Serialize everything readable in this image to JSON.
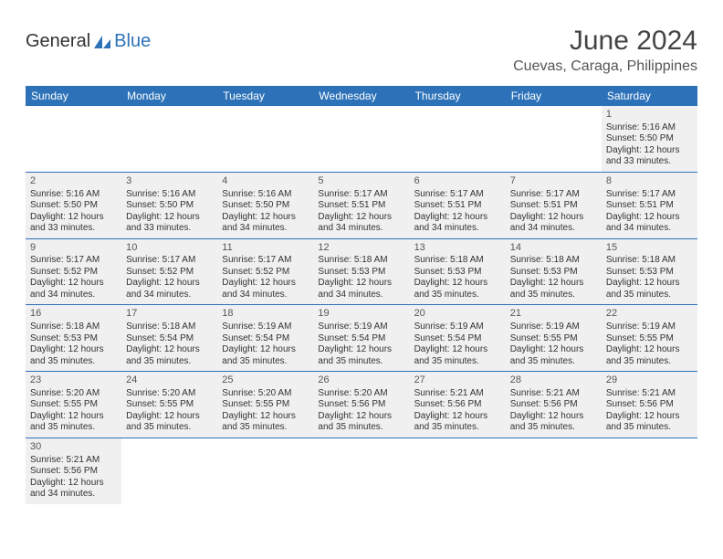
{
  "brand": {
    "part1": "General",
    "part2": "Blue"
  },
  "title": "June 2024",
  "location": "Cuevas, Caraga, Philippines",
  "colors": {
    "header_bg": "#2d72b8",
    "header_text": "#ffffff",
    "cell_bg": "#f0f0f0",
    "divider": "#2d72b8",
    "body_text": "#333333",
    "title_text": "#444444"
  },
  "day_headers": [
    "Sunday",
    "Monday",
    "Tuesday",
    "Wednesday",
    "Thursday",
    "Friday",
    "Saturday"
  ],
  "weeks": [
    [
      null,
      null,
      null,
      null,
      null,
      null,
      {
        "n": "1",
        "sunrise": "Sunrise: 5:16 AM",
        "sunset": "Sunset: 5:50 PM",
        "daylight": "Daylight: 12 hours and 33 minutes."
      }
    ],
    [
      {
        "n": "2",
        "sunrise": "Sunrise: 5:16 AM",
        "sunset": "Sunset: 5:50 PM",
        "daylight": "Daylight: 12 hours and 33 minutes."
      },
      {
        "n": "3",
        "sunrise": "Sunrise: 5:16 AM",
        "sunset": "Sunset: 5:50 PM",
        "daylight": "Daylight: 12 hours and 33 minutes."
      },
      {
        "n": "4",
        "sunrise": "Sunrise: 5:16 AM",
        "sunset": "Sunset: 5:50 PM",
        "daylight": "Daylight: 12 hours and 34 minutes."
      },
      {
        "n": "5",
        "sunrise": "Sunrise: 5:17 AM",
        "sunset": "Sunset: 5:51 PM",
        "daylight": "Daylight: 12 hours and 34 minutes."
      },
      {
        "n": "6",
        "sunrise": "Sunrise: 5:17 AM",
        "sunset": "Sunset: 5:51 PM",
        "daylight": "Daylight: 12 hours and 34 minutes."
      },
      {
        "n": "7",
        "sunrise": "Sunrise: 5:17 AM",
        "sunset": "Sunset: 5:51 PM",
        "daylight": "Daylight: 12 hours and 34 minutes."
      },
      {
        "n": "8",
        "sunrise": "Sunrise: 5:17 AM",
        "sunset": "Sunset: 5:51 PM",
        "daylight": "Daylight: 12 hours and 34 minutes."
      }
    ],
    [
      {
        "n": "9",
        "sunrise": "Sunrise: 5:17 AM",
        "sunset": "Sunset: 5:52 PM",
        "daylight": "Daylight: 12 hours and 34 minutes."
      },
      {
        "n": "10",
        "sunrise": "Sunrise: 5:17 AM",
        "sunset": "Sunset: 5:52 PM",
        "daylight": "Daylight: 12 hours and 34 minutes."
      },
      {
        "n": "11",
        "sunrise": "Sunrise: 5:17 AM",
        "sunset": "Sunset: 5:52 PM",
        "daylight": "Daylight: 12 hours and 34 minutes."
      },
      {
        "n": "12",
        "sunrise": "Sunrise: 5:18 AM",
        "sunset": "Sunset: 5:53 PM",
        "daylight": "Daylight: 12 hours and 34 minutes."
      },
      {
        "n": "13",
        "sunrise": "Sunrise: 5:18 AM",
        "sunset": "Sunset: 5:53 PM",
        "daylight": "Daylight: 12 hours and 35 minutes."
      },
      {
        "n": "14",
        "sunrise": "Sunrise: 5:18 AM",
        "sunset": "Sunset: 5:53 PM",
        "daylight": "Daylight: 12 hours and 35 minutes."
      },
      {
        "n": "15",
        "sunrise": "Sunrise: 5:18 AM",
        "sunset": "Sunset: 5:53 PM",
        "daylight": "Daylight: 12 hours and 35 minutes."
      }
    ],
    [
      {
        "n": "16",
        "sunrise": "Sunrise: 5:18 AM",
        "sunset": "Sunset: 5:53 PM",
        "daylight": "Daylight: 12 hours and 35 minutes."
      },
      {
        "n": "17",
        "sunrise": "Sunrise: 5:18 AM",
        "sunset": "Sunset: 5:54 PM",
        "daylight": "Daylight: 12 hours and 35 minutes."
      },
      {
        "n": "18",
        "sunrise": "Sunrise: 5:19 AM",
        "sunset": "Sunset: 5:54 PM",
        "daylight": "Daylight: 12 hours and 35 minutes."
      },
      {
        "n": "19",
        "sunrise": "Sunrise: 5:19 AM",
        "sunset": "Sunset: 5:54 PM",
        "daylight": "Daylight: 12 hours and 35 minutes."
      },
      {
        "n": "20",
        "sunrise": "Sunrise: 5:19 AM",
        "sunset": "Sunset: 5:54 PM",
        "daylight": "Daylight: 12 hours and 35 minutes."
      },
      {
        "n": "21",
        "sunrise": "Sunrise: 5:19 AM",
        "sunset": "Sunset: 5:55 PM",
        "daylight": "Daylight: 12 hours and 35 minutes."
      },
      {
        "n": "22",
        "sunrise": "Sunrise: 5:19 AM",
        "sunset": "Sunset: 5:55 PM",
        "daylight": "Daylight: 12 hours and 35 minutes."
      }
    ],
    [
      {
        "n": "23",
        "sunrise": "Sunrise: 5:20 AM",
        "sunset": "Sunset: 5:55 PM",
        "daylight": "Daylight: 12 hours and 35 minutes."
      },
      {
        "n": "24",
        "sunrise": "Sunrise: 5:20 AM",
        "sunset": "Sunset: 5:55 PM",
        "daylight": "Daylight: 12 hours and 35 minutes."
      },
      {
        "n": "25",
        "sunrise": "Sunrise: 5:20 AM",
        "sunset": "Sunset: 5:55 PM",
        "daylight": "Daylight: 12 hours and 35 minutes."
      },
      {
        "n": "26",
        "sunrise": "Sunrise: 5:20 AM",
        "sunset": "Sunset: 5:56 PM",
        "daylight": "Daylight: 12 hours and 35 minutes."
      },
      {
        "n": "27",
        "sunrise": "Sunrise: 5:21 AM",
        "sunset": "Sunset: 5:56 PM",
        "daylight": "Daylight: 12 hours and 35 minutes."
      },
      {
        "n": "28",
        "sunrise": "Sunrise: 5:21 AM",
        "sunset": "Sunset: 5:56 PM",
        "daylight": "Daylight: 12 hours and 35 minutes."
      },
      {
        "n": "29",
        "sunrise": "Sunrise: 5:21 AM",
        "sunset": "Sunset: 5:56 PM",
        "daylight": "Daylight: 12 hours and 35 minutes."
      }
    ],
    [
      {
        "n": "30",
        "sunrise": "Sunrise: 5:21 AM",
        "sunset": "Sunset: 5:56 PM",
        "daylight": "Daylight: 12 hours and 34 minutes."
      },
      null,
      null,
      null,
      null,
      null,
      null
    ]
  ]
}
